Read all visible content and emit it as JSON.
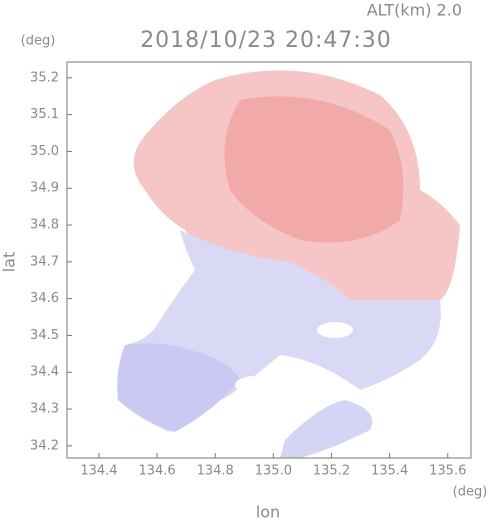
{
  "header": {
    "altitude": "ALT(km) 2.0",
    "title": "2018/10/23 20:47:30",
    "y_unit": "(deg)",
    "x_unit": "(deg)"
  },
  "axes": {
    "ylabel": "lat",
    "xlabel": "lon",
    "xlim": [
      134.29,
      135.68
    ],
    "ylim": [
      34.167,
      35.243
    ],
    "xticks": [
      134.4,
      134.6,
      134.8,
      {
        "value": 135,
        "label": "135.0"
      },
      135.2,
      135.4,
      135.6
    ],
    "yticks": [
      34.2,
      34.3,
      34.4,
      34.5,
      34.6,
      34.7,
      34.8,
      34.9,
      {
        "value": 35,
        "label": "35.0"
      },
      35.1,
      35.2
    ]
  }
}
